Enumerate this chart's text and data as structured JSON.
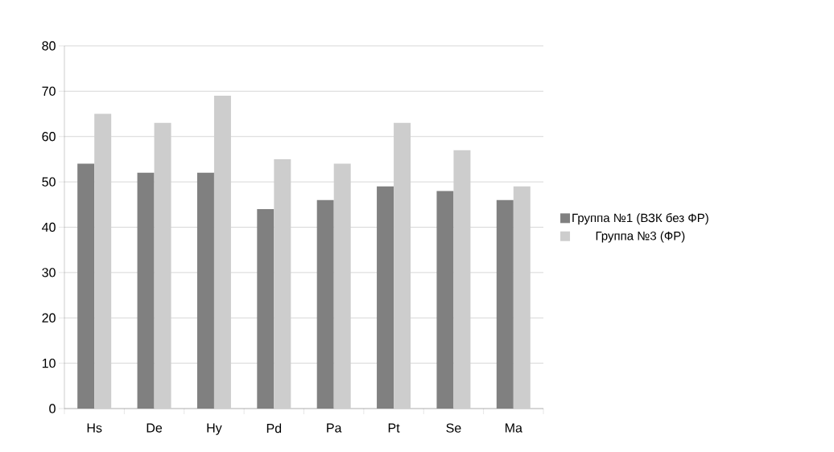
{
  "chart_data": {
    "type": "bar",
    "categories": [
      "Hs",
      "De",
      "Hy",
      "Pd",
      "Pa",
      "Pt",
      "Se",
      "Ma"
    ],
    "series": [
      {
        "name": "Группа №1 (ВЗК без ФР)",
        "color": "#808080",
        "values": [
          54,
          52,
          52,
          44,
          46,
          49,
          48,
          46
        ]
      },
      {
        "name": "Группа №3 (ФР)",
        "color": "#cdcdcd",
        "values": [
          65,
          63,
          69,
          55,
          54,
          63,
          57,
          49
        ]
      }
    ],
    "ylim": [
      0,
      80
    ],
    "yticks": [
      0,
      10,
      20,
      30,
      40,
      50,
      60,
      70,
      80
    ],
    "grid": "y",
    "legend": "right"
  }
}
